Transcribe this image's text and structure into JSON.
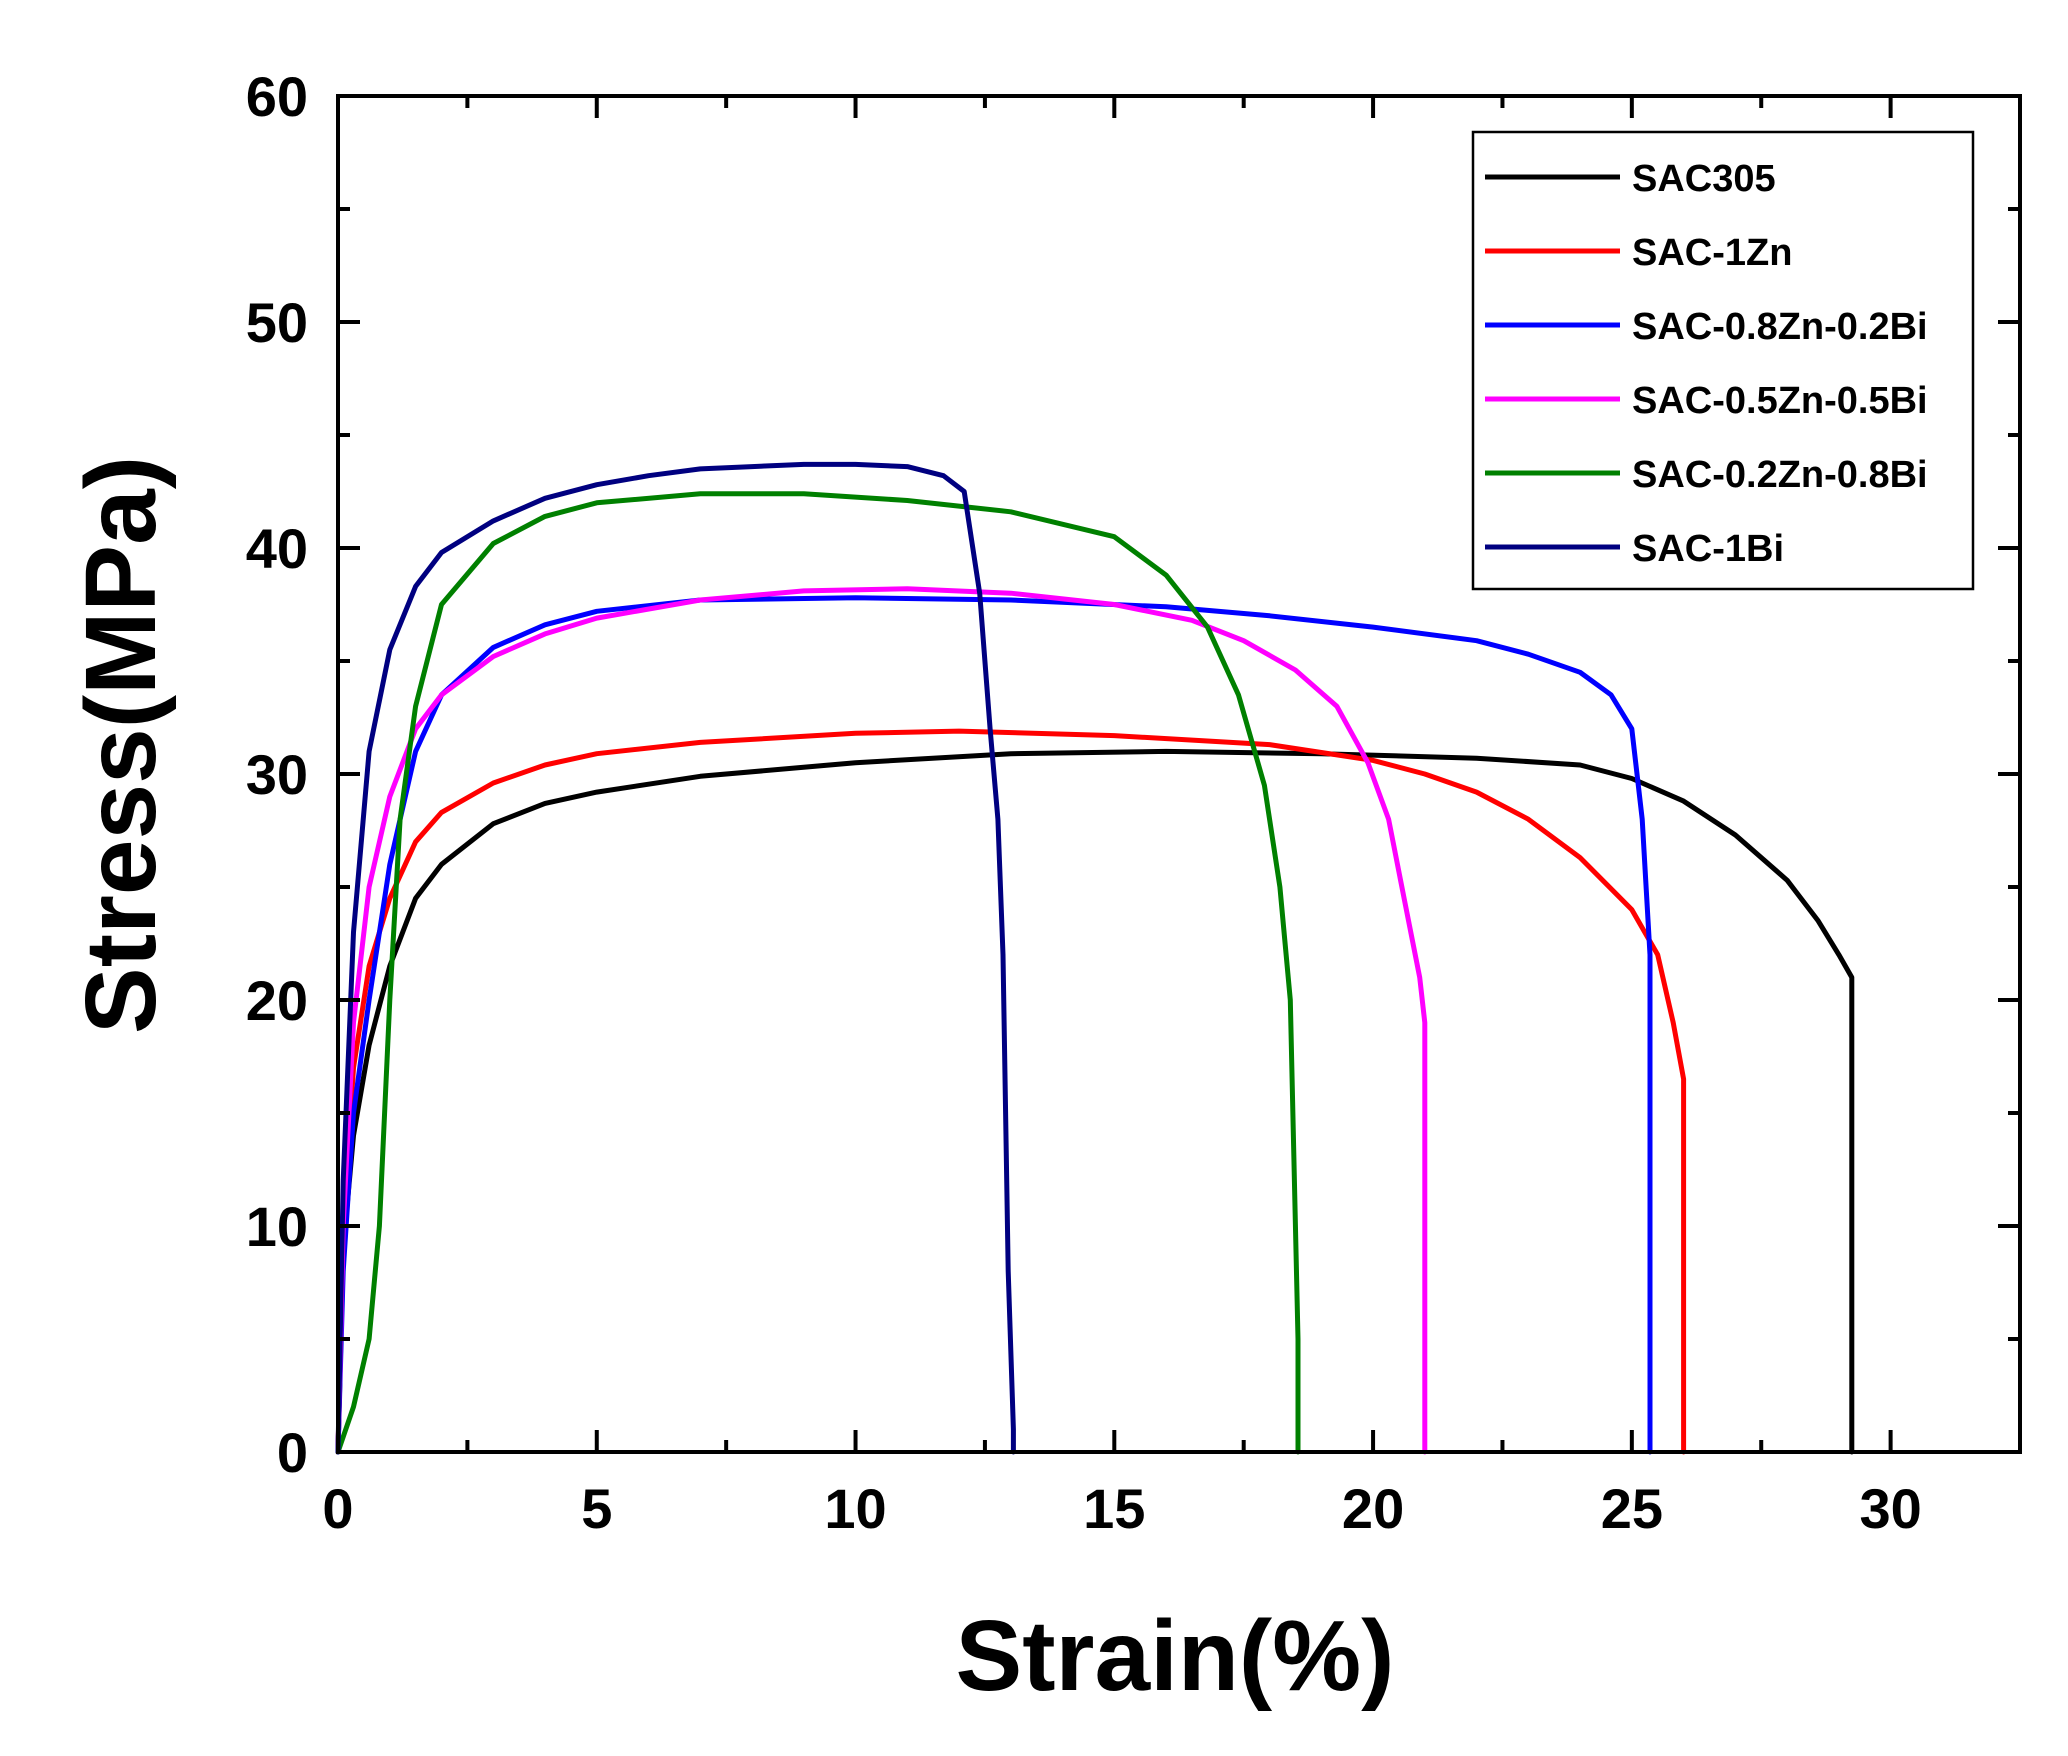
{
  "chart_data": {
    "type": "line",
    "title": "",
    "xlabel": "Strain(%)",
    "ylabel": "Stress(MPa)",
    "xlim": [
      0,
      32.5
    ],
    "ylim": [
      0,
      60
    ],
    "xticks": [
      0,
      5,
      10,
      15,
      20,
      25,
      30
    ],
    "xtick_labels": [
      "0",
      "5",
      "10",
      "15",
      "20",
      "25",
      "30"
    ],
    "yticks": [
      0,
      10,
      20,
      30,
      40,
      50,
      60
    ],
    "ytick_labels": [
      "0",
      "10",
      "20",
      "30",
      "40",
      "50",
      "60"
    ],
    "grid": false,
    "legend_position": "top-right",
    "series": [
      {
        "name": "SAC305",
        "color": "#000000",
        "x": [
          0,
          0.1,
          0.3,
          0.6,
          1,
          1.5,
          2,
          3,
          4,
          5,
          7,
          10,
          13,
          16,
          19,
          22,
          24,
          25,
          26,
          27,
          28,
          28.6,
          29.0,
          29.25,
          29.25
        ],
        "y": [
          0,
          9,
          14,
          18,
          21.5,
          24.5,
          26,
          27.8,
          28.7,
          29.2,
          29.9,
          30.5,
          30.9,
          31.0,
          30.9,
          30.7,
          30.4,
          29.8,
          28.8,
          27.3,
          25.3,
          23.5,
          22.0,
          21.0,
          0
        ]
      },
      {
        "name": "SAC-1Zn",
        "color": "#ff0000",
        "x": [
          0,
          0.1,
          0.3,
          0.6,
          1,
          1.5,
          2,
          3,
          4,
          5,
          7,
          10,
          12,
          15,
          18,
          20,
          21,
          22,
          23,
          24,
          25,
          25.5,
          25.8,
          26.0,
          26.0
        ],
        "y": [
          0,
          10,
          17,
          21.5,
          24.5,
          27,
          28.3,
          29.6,
          30.4,
          30.9,
          31.4,
          31.8,
          31.9,
          31.7,
          31.3,
          30.6,
          30.0,
          29.2,
          28.0,
          26.3,
          24.0,
          22.0,
          19.0,
          16.5,
          0
        ]
      },
      {
        "name": "SAC-0.8Zn-0.2Bi",
        "color": "#0000ff",
        "x": [
          0,
          0.1,
          0.3,
          0.6,
          1,
          1.5,
          2,
          3,
          4,
          5,
          7,
          10,
          13,
          16,
          18,
          20,
          22,
          23,
          24,
          24.6,
          25.0,
          25.2,
          25.35,
          25.35
        ],
        "y": [
          0,
          8,
          15,
          20,
          26,
          31,
          33.5,
          35.6,
          36.6,
          37.2,
          37.7,
          37.8,
          37.7,
          37.4,
          37.0,
          36.5,
          35.9,
          35.3,
          34.5,
          33.5,
          32.0,
          28.0,
          22.0,
          0
        ]
      },
      {
        "name": "SAC-0.5Zn-0.5Bi",
        "color": "#ff00ff",
        "x": [
          0,
          0.1,
          0.3,
          0.6,
          1,
          1.5,
          2,
          3,
          4,
          5,
          7,
          9,
          11,
          13,
          15,
          16.5,
          17.5,
          18.5,
          19.3,
          19.9,
          20.3,
          20.6,
          20.9,
          21.0,
          21.0
        ],
        "y": [
          0,
          10,
          19,
          25,
          29,
          32,
          33.5,
          35.2,
          36.2,
          36.9,
          37.7,
          38.1,
          38.2,
          38.0,
          37.5,
          36.8,
          35.9,
          34.6,
          33.0,
          30.5,
          28.0,
          24.5,
          21.0,
          19.0,
          0
        ]
      },
      {
        "name": "SAC-0.2Zn-0.8Bi",
        "color": "#008000",
        "x": [
          0,
          0.3,
          0.6,
          0.8,
          1,
          1.2,
          1.5,
          2,
          3,
          4,
          5,
          7,
          9,
          11,
          13,
          15,
          16,
          16.8,
          17.4,
          17.9,
          18.2,
          18.4,
          18.55,
          18.55
        ],
        "y": [
          0,
          2,
          5,
          10,
          20,
          28,
          33,
          37.5,
          40.2,
          41.4,
          42.0,
          42.4,
          42.4,
          42.1,
          41.6,
          40.5,
          38.8,
          36.5,
          33.5,
          29.5,
          25.0,
          20.0,
          5.0,
          0
        ]
      },
      {
        "name": "SAC-1Bi",
        "color": "#000080",
        "x": [
          0,
          0.1,
          0.3,
          0.6,
          1,
          1.5,
          2,
          3,
          4,
          5,
          6,
          7,
          8,
          9,
          10,
          11,
          11.7,
          12.1,
          12.4,
          12.6,
          12.75,
          12.85,
          12.95,
          13.05,
          13.05
        ],
        "y": [
          0,
          12,
          23,
          31,
          35.5,
          38.3,
          39.8,
          41.2,
          42.2,
          42.8,
          43.2,
          43.5,
          43.6,
          43.7,
          43.7,
          43.6,
          43.2,
          42.5,
          38.0,
          32.0,
          28.0,
          22.0,
          8.0,
          1.0,
          0
        ]
      }
    ]
  }
}
